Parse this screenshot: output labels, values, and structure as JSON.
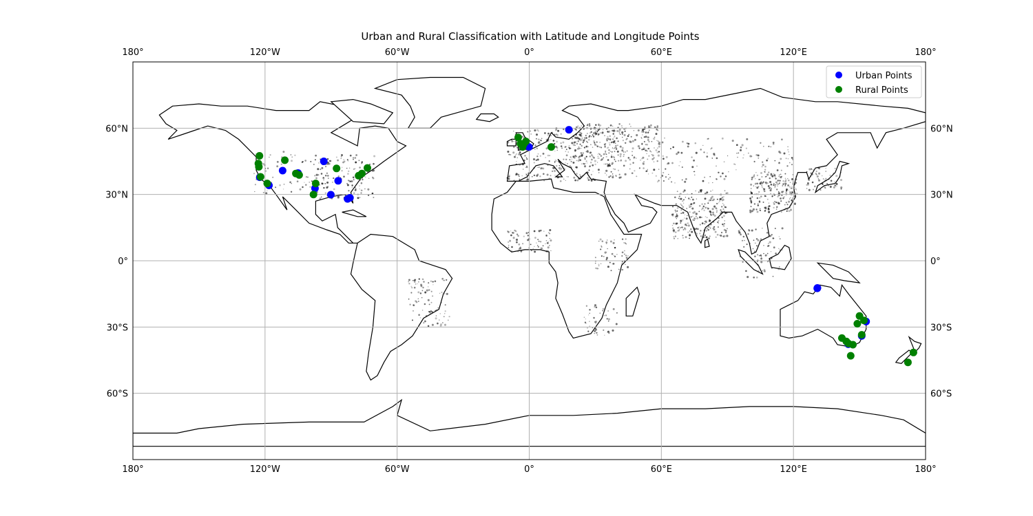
{
  "title": "Urban and Rural Classification with Latitude and Longitude Points",
  "legend": {
    "items": [
      {
        "label": "Urban Points",
        "color": "#0000ff"
      },
      {
        "label": "Rural Points",
        "color": "#008000"
      }
    ]
  },
  "axes": {
    "lon_ticks": [
      {
        "value": -180,
        "label": "180°"
      },
      {
        "value": -120,
        "label": "120°W"
      },
      {
        "value": -60,
        "label": "60°W"
      },
      {
        "value": 0,
        "label": "0°"
      },
      {
        "value": 60,
        "label": "60°E"
      },
      {
        "value": 120,
        "label": "120°E"
      },
      {
        "value": 180,
        "label": "180°"
      }
    ],
    "lat_ticks": [
      {
        "value": 60,
        "label": "60°N"
      },
      {
        "value": 30,
        "label": "30°N"
      },
      {
        "value": 0,
        "label": "0°"
      },
      {
        "value": -30,
        "label": "30°S"
      },
      {
        "value": -60,
        "label": "60°S"
      }
    ],
    "lon_range": [
      -180,
      180
    ],
    "lat_range": [
      -90,
      90
    ],
    "grid": true
  },
  "chart_data": {
    "type": "scatter",
    "projection": "PlateCarree",
    "title": "Urban and Rural Classification with Latitude and Longitude Points",
    "xlim": [
      -180,
      180
    ],
    "ylim": [
      -90,
      90
    ],
    "legend_position": "top-right",
    "series": [
      {
        "name": "Urban Points",
        "color": "#0000ff",
        "points": [
          [
            -122.4,
            37.8
          ],
          [
            -118.2,
            34.1
          ],
          [
            -112.0,
            40.8
          ],
          [
            -105.0,
            39.7
          ],
          [
            -97.3,
            32.8
          ],
          [
            -93.3,
            45.0
          ],
          [
            -90.1,
            29.9
          ],
          [
            -86.8,
            36.2
          ],
          [
            -82.5,
            28.0
          ],
          [
            -81.4,
            28.5
          ],
          [
            -0.1,
            51.5
          ],
          [
            -1.5,
            53.0
          ],
          [
            18.0,
            59.3
          ],
          [
            130.8,
            -12.5
          ],
          [
            130.9,
            -12.3
          ],
          [
            144.9,
            -37.8
          ],
          [
            151.0,
            -34.0
          ],
          [
            153.0,
            -27.5
          ]
        ]
      },
      {
        "name": "Rural Points",
        "color": "#008000",
        "points": [
          [
            -122.5,
            47.5
          ],
          [
            -123.0,
            44.0
          ],
          [
            -122.8,
            42.5
          ],
          [
            -122.0,
            38.0
          ],
          [
            -119.0,
            35.0
          ],
          [
            -111.0,
            45.5
          ],
          [
            -106.0,
            39.5
          ],
          [
            -104.5,
            38.8
          ],
          [
            -97.0,
            35.0
          ],
          [
            -98.0,
            30.0
          ],
          [
            -87.5,
            41.8
          ],
          [
            -77.5,
            38.5
          ],
          [
            -76.0,
            39.5
          ],
          [
            -73.5,
            42.0
          ],
          [
            -5.0,
            55.8
          ],
          [
            -4.0,
            53.0
          ],
          [
            -3.0,
            51.5
          ],
          [
            -2.5,
            52.8
          ],
          [
            -1.5,
            54.0
          ],
          [
            10.0,
            51.5
          ],
          [
            142.0,
            -35.0
          ],
          [
            144.0,
            -36.5
          ],
          [
            145.0,
            -37.5
          ],
          [
            147.0,
            -38.0
          ],
          [
            146.0,
            -43.0
          ],
          [
            149.0,
            -28.5
          ],
          [
            150.0,
            -25.0
          ],
          [
            152.0,
            -27.0
          ],
          [
            151.0,
            -33.5
          ],
          [
            172.0,
            -46.0
          ],
          [
            174.5,
            -41.5
          ]
        ]
      }
    ]
  }
}
